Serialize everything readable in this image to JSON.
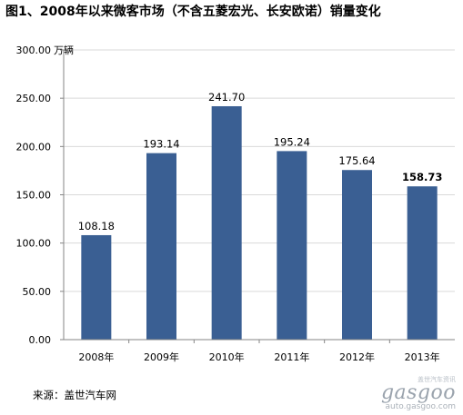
{
  "title": "图1、2008年以来微客市场（不含五菱宏光、长安欧诺）销量变化",
  "chart_data": {
    "type": "bar",
    "categories": [
      "2008年",
      "2009年",
      "2010年",
      "2011年",
      "2012年",
      "2013年"
    ],
    "values": [
      108.18,
      193.14,
      241.7,
      195.24,
      175.64,
      158.73
    ],
    "value_labels": [
      "108.18",
      "193.14",
      "241.70",
      "195.24",
      "175.64",
      "158.73"
    ],
    "bold_labels": [
      false,
      false,
      false,
      false,
      false,
      true
    ],
    "y_ticks": [
      "0.00",
      "50.00",
      "100.00",
      "150.00",
      "200.00",
      "250.00",
      "300.00"
    ],
    "y_unit": "万辆",
    "ylim": [
      0,
      300
    ],
    "grid": true,
    "bar_color": "#3a5f93",
    "gridline_color": "#d9d9d9",
    "axis_color": "#868686"
  },
  "source": "来源：盖世汽车网",
  "watermark": {
    "top_text": "盖世汽车资讯",
    "logo": "gasgoo",
    "url": "auto.gasgoo.com"
  }
}
